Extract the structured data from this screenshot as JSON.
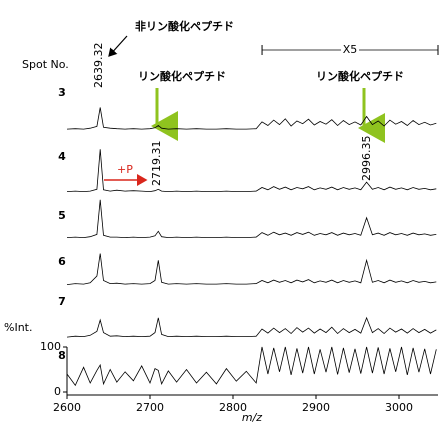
{
  "chart_data": {
    "type": "line",
    "legend_title": "Spot No.",
    "xlabel": "m/z",
    "ylabel": "%Int.",
    "xlim": [
      2600,
      3047
    ],
    "xticks": [
      2600,
      2700,
      2800,
      2900,
      3000
    ],
    "ylim": [
      0,
      100
    ],
    "yticks": [
      0,
      100
    ],
    "zoom_label": "X5",
    "zoom_range": [
      2835,
      3047
    ],
    "annotations": [
      "非リン酸化ペプチド",
      "リン酸化ペプチド",
      "リン酸化ペプチド",
      "+P"
    ],
    "peak_labels": [
      2639.32,
      2719.31,
      2996.35
    ],
    "x": [
      2600,
      2610,
      2620,
      2628,
      2636,
      2640,
      2644,
      2652,
      2660,
      2670,
      2680,
      2690,
      2700,
      2706,
      2710,
      2714,
      2722,
      2732,
      2744,
      2756,
      2768,
      2780,
      2792,
      2804,
      2816,
      2828,
      2835,
      2842,
      2849,
      2856,
      2863,
      2870,
      2877,
      2884,
      2891,
      2898,
      2905,
      2912,
      2919,
      2926,
      2933,
      2940,
      2947,
      2954,
      2961,
      2968,
      2975,
      2982,
      2989,
      2996,
      3003,
      3010,
      3017,
      3024,
      3031,
      3038,
      3045
    ],
    "series": [
      {
        "name": "3",
        "color": "#000000",
        "values": [
          2,
          3,
          2,
          4,
          8,
          50,
          6,
          4,
          3,
          2,
          3,
          2,
          3,
          5,
          10,
          4,
          2,
          3,
          2,
          3,
          2,
          2,
          3,
          2,
          2,
          3,
          18,
          10,
          22,
          12,
          25,
          9,
          20,
          14,
          24,
          11,
          19,
          13,
          23,
          10,
          21,
          12,
          18,
          11,
          30,
          12,
          20,
          9,
          22,
          13,
          19,
          10,
          21,
          12,
          17,
          11,
          15
        ]
      },
      {
        "name": "4",
        "color": "#000000",
        "values": [
          1,
          2,
          1,
          2,
          6,
          95,
          5,
          2,
          4,
          2,
          3,
          2,
          1,
          3,
          6,
          2,
          1,
          2,
          1,
          2,
          1,
          1,
          2,
          1,
          1,
          2,
          10,
          5,
          12,
          6,
          11,
          5,
          10,
          7,
          12,
          5,
          9,
          6,
          11,
          5,
          10,
          6,
          9,
          5,
          22,
          6,
          10,
          5,
          11,
          6,
          9,
          5,
          10,
          6,
          8,
          5,
          7
        ]
      },
      {
        "name": "5",
        "color": "#000000",
        "values": [
          1,
          2,
          1,
          3,
          8,
          85,
          6,
          2,
          2,
          1,
          2,
          1,
          2,
          5,
          15,
          3,
          1,
          2,
          1,
          2,
          1,
          1,
          2,
          1,
          1,
          2,
          12,
          6,
          13,
          7,
          11,
          6,
          12,
          8,
          13,
          6,
          10,
          7,
          12,
          6,
          11,
          7,
          10,
          6,
          45,
          7,
          11,
          6,
          12,
          7,
          10,
          6,
          11,
          7,
          9,
          6,
          8
        ]
      },
      {
        "name": "6",
        "color": "#000000",
        "values": [
          1,
          3,
          2,
          5,
          20,
          70,
          10,
          3,
          4,
          2,
          3,
          2,
          3,
          10,
          55,
          6,
          2,
          3,
          2,
          3,
          2,
          2,
          3,
          2,
          2,
          3,
          10,
          5,
          11,
          6,
          10,
          5,
          11,
          7,
          12,
          5,
          9,
          6,
          11,
          5,
          10,
          6,
          9,
          5,
          55,
          6,
          10,
          5,
          11,
          6,
          9,
          5,
          10,
          6,
          8,
          5,
          7
        ]
      },
      {
        "name": "7",
        "color": "#000000",
        "values": [
          2,
          4,
          3,
          6,
          15,
          40,
          12,
          4,
          5,
          3,
          4,
          3,
          4,
          12,
          45,
          8,
          3,
          4,
          3,
          4,
          3,
          3,
          4,
          3,
          3,
          4,
          20,
          11,
          22,
          12,
          21,
          10,
          23,
          13,
          22,
          11,
          20,
          12,
          24,
          10,
          21,
          12,
          19,
          11,
          45,
          12,
          21,
          10,
          22,
          13,
          20,
          11,
          21,
          12,
          19,
          11,
          18
        ]
      },
      {
        "name": "8",
        "color": "#000000",
        "values": [
          40,
          15,
          55,
          20,
          48,
          60,
          18,
          50,
          22,
          45,
          25,
          58,
          20,
          52,
          48,
          18,
          47,
          22,
          50,
          20,
          44,
          18,
          52,
          24,
          46,
          20,
          100,
          40,
          98,
          45,
          100,
          38,
          97,
          42,
          100,
          40,
          95,
          44,
          100,
          39,
          98,
          43,
          96,
          41,
          100,
          42,
          99,
          40,
          97,
          45,
          100,
          38,
          98,
          44,
          96,
          40,
          95
        ]
      }
    ]
  }
}
